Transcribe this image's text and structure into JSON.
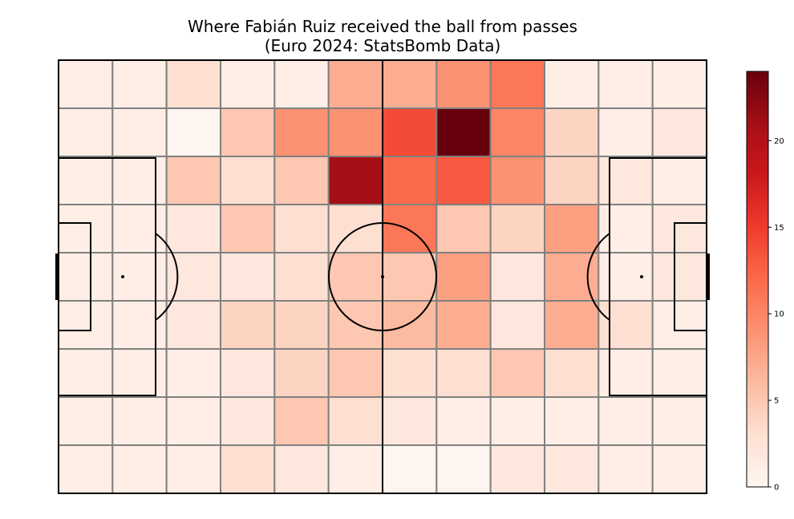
{
  "chart_data": {
    "type": "heatmap",
    "title_lines": [
      "Where Fabián Ruiz received the ball from passes",
      "(Euro 2024: StatsBomb Data)"
    ],
    "xlabel": "",
    "ylabel": "",
    "grid": true,
    "n_cols": 12,
    "n_rows": 9,
    "values": [
      [
        1,
        1,
        3,
        1,
        1,
        7,
        7,
        9,
        11,
        1,
        1,
        1
      ],
      [
        1,
        1,
        0,
        5,
        9,
        9,
        14,
        24,
        10,
        4,
        1,
        2
      ],
      [
        1,
        1,
        5,
        3,
        5,
        21,
        12,
        13,
        9,
        4,
        2,
        1
      ],
      [
        1,
        1,
        2,
        5,
        3,
        3,
        11,
        5,
        4,
        8,
        1,
        2
      ],
      [
        1,
        1,
        2,
        2,
        3,
        5,
        5,
        8,
        2,
        7,
        1,
        2
      ],
      [
        1,
        1,
        2,
        4,
        4,
        5,
        6,
        7,
        2,
        7,
        3,
        1
      ],
      [
        1,
        1,
        1,
        2,
        4,
        5,
        3,
        3,
        5,
        3,
        1,
        1
      ],
      [
        1,
        1,
        1,
        2,
        5,
        3,
        2,
        1,
        1,
        1,
        1,
        1
      ],
      [
        1,
        1,
        1,
        3,
        2,
        1,
        0,
        0,
        2,
        2,
        1,
        1
      ]
    ],
    "colorbar": {
      "colormap": "Reds",
      "range": [
        0,
        24
      ],
      "ticks": [
        0,
        5,
        10,
        15,
        20
      ],
      "tick_labels": [
        "0",
        "5",
        "10",
        "15",
        "20"
      ]
    }
  }
}
